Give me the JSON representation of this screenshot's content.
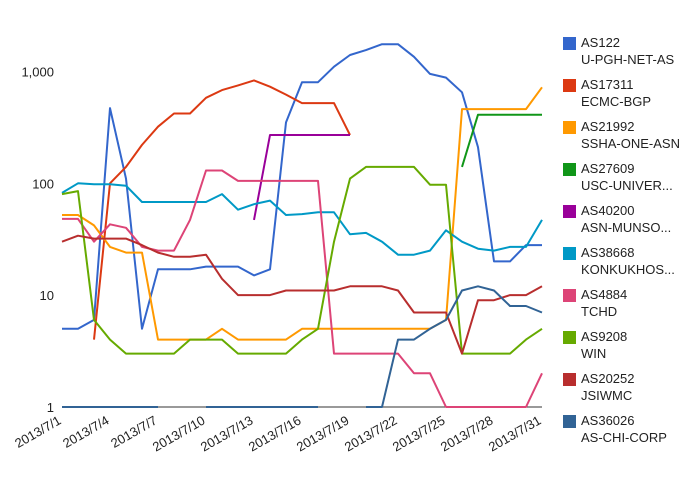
{
  "chart_data": {
    "type": "line",
    "title": "",
    "xlabel": "",
    "ylabel": "",
    "y_scale": "log",
    "ylim": [
      1,
      3000
    ],
    "y_ticks": [
      1,
      10,
      100,
      1000
    ],
    "y_tick_labels": [
      "1",
      "10",
      "100",
      "1,000"
    ],
    "x_tick_labels": [
      "2013/7/1",
      "2013/7/4",
      "2013/7/7",
      "2013/7/10",
      "2013/7/13",
      "2013/7/16",
      "2013/7/19",
      "2013/7/22",
      "2013/7/25",
      "2013/7/28",
      "2013/7/31"
    ],
    "grid": false,
    "legend_position": "right",
    "x": [
      "2013/7/1",
      "2013/7/2",
      "2013/7/3",
      "2013/7/4",
      "2013/7/5",
      "2013/7/6",
      "2013/7/7",
      "2013/7/8",
      "2013/7/9",
      "2013/7/10",
      "2013/7/11",
      "2013/7/12",
      "2013/7/13",
      "2013/7/14",
      "2013/7/15",
      "2013/7/16",
      "2013/7/17",
      "2013/7/18",
      "2013/7/19",
      "2013/7/20",
      "2013/7/21",
      "2013/7/22",
      "2013/7/23",
      "2013/7/24",
      "2013/7/25",
      "2013/7/26",
      "2013/7/27",
      "2013/7/28",
      "2013/7/29",
      "2013/7/30",
      "2013/7/31"
    ],
    "series": [
      {
        "name": "AS122",
        "label_line2": "U-PGH-NET-AS",
        "color": "#3366cc",
        "values": [
          5,
          5,
          6,
          470,
          110,
          5,
          17,
          17,
          17,
          18,
          18,
          18,
          15,
          17,
          350,
          800,
          800,
          1100,
          1400,
          1550,
          1750,
          1750,
          1350,
          950,
          880,
          650,
          210,
          20,
          20,
          28,
          28
        ]
      },
      {
        "name": "AS17311",
        "label_line2": "ECMC-BGP",
        "color": "#dc3912",
        "values": [
          null,
          null,
          4,
          100,
          140,
          220,
          320,
          420,
          420,
          580,
          680,
          750,
          830,
          730,
          620,
          520,
          520,
          520,
          270,
          null,
          null,
          null,
          null,
          null,
          null,
          null,
          null,
          null,
          null,
          null,
          null
        ]
      },
      {
        "name": "AS21992",
        "label_line2": "SSHA-ONE-ASN",
        "color": "#ff9900",
        "values": [
          52,
          52,
          42,
          27,
          24,
          24,
          4,
          4,
          4,
          4,
          5,
          4,
          4,
          4,
          4,
          5,
          5,
          5,
          5,
          5,
          5,
          5,
          5,
          5,
          6,
          460,
          460,
          460,
          460,
          460,
          720
        ]
      },
      {
        "name": "AS27609",
        "label_line2": "USC-UNIVER...",
        "color": "#109618",
        "values": [
          null,
          null,
          null,
          null,
          null,
          null,
          null,
          null,
          null,
          null,
          null,
          null,
          null,
          null,
          null,
          null,
          null,
          null,
          null,
          null,
          null,
          null,
          null,
          null,
          null,
          140,
          410,
          410,
          410,
          410,
          410
        ]
      },
      {
        "name": "AS40200",
        "label_line2": "ASN-MUNSO...",
        "color": "#990099",
        "values": [
          null,
          null,
          null,
          null,
          null,
          null,
          null,
          null,
          null,
          null,
          null,
          null,
          47,
          270,
          270,
          270,
          270,
          270,
          270,
          null,
          null,
          null,
          null,
          null,
          null,
          null,
          null,
          null,
          null,
          null,
          null
        ]
      },
      {
        "name": "AS38668",
        "label_line2": "KONKUKHOS...",
        "color": "#0099c6",
        "values": [
          82,
          100,
          98,
          98,
          95,
          68,
          68,
          68,
          68,
          68,
          80,
          58,
          65,
          70,
          52,
          53,
          55,
          55,
          35,
          36,
          30,
          23,
          23,
          25,
          38,
          30,
          26,
          25,
          27,
          27,
          47
        ]
      },
      {
        "name": "AS4884",
        "label_line2": "TCHD",
        "color": "#dd4477",
        "values": [
          48,
          48,
          30,
          43,
          40,
          27,
          25,
          25,
          47,
          130,
          130,
          105,
          105,
          105,
          105,
          105,
          105,
          3,
          3,
          3,
          3,
          3,
          2,
          2,
          1,
          1,
          1,
          1,
          1,
          1,
          2
        ]
      },
      {
        "name": "AS9208",
        "label_line2": "WIN",
        "color": "#66aa00",
        "values": [
          80,
          85,
          6,
          4,
          3,
          3,
          3,
          3,
          4,
          4,
          4,
          3,
          3,
          3,
          3,
          4,
          5,
          30,
          110,
          140,
          140,
          140,
          140,
          97,
          97,
          3,
          3,
          3,
          3,
          4,
          5
        ]
      },
      {
        "name": "AS20252",
        "label_line2": "JSIWMC",
        "color": "#b82e2e",
        "values": [
          30,
          34,
          32,
          32,
          32,
          28,
          24,
          22,
          22,
          23,
          14,
          10,
          10,
          10,
          11,
          11,
          11,
          11,
          12,
          12,
          12,
          11,
          7,
          7,
          7,
          3,
          9,
          9,
          10,
          10,
          12
        ]
      },
      {
        "name": "AS36026",
        "label_line2": "AS-CHI-CORP",
        "color": "#316395",
        "values": [
          1,
          1,
          1,
          1,
          1,
          1,
          1,
          null,
          null,
          1,
          1,
          1,
          1,
          1,
          1,
          1,
          1,
          null,
          null,
          1,
          1,
          4,
          4,
          5,
          6,
          11,
          12,
          11,
          8,
          8,
          7
        ]
      }
    ]
  }
}
